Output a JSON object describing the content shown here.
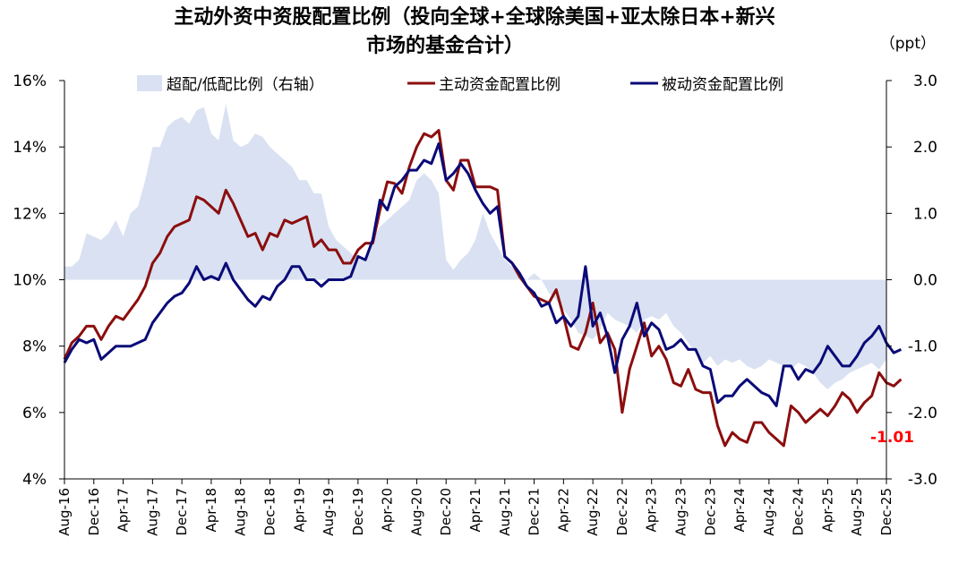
{
  "chart_data": {
    "type": "line",
    "title_line1": "主动外资中资股配置比例（投向全球+全球除美国+亚太除日本+新兴",
    "title_line2": "市场的基金合计）",
    "right_unit": "（ppt）",
    "left_axis": {
      "ylim": [
        4,
        16
      ],
      "ticks": [
        "4%",
        "6%",
        "8%",
        "10%",
        "12%",
        "14%",
        "16%"
      ],
      "tick_values": [
        4,
        6,
        8,
        10,
        12,
        14,
        16
      ]
    },
    "right_axis": {
      "ylim": [
        -3.0,
        3.0
      ],
      "ticks": [
        "-3.0",
        "-2.0",
        "-1.0",
        "0.0",
        "1.0",
        "2.0",
        "3.0"
      ],
      "tick_values": [
        -3,
        -2,
        -1,
        0,
        1,
        2,
        3
      ]
    },
    "x_tick_labels": [
      "Aug-16",
      "Dec-16",
      "Apr-17",
      "Aug-17",
      "Dec-17",
      "Apr-18",
      "Aug-18",
      "Dec-18",
      "Apr-19",
      "Aug-19",
      "Dec-19",
      "Apr-20",
      "Aug-20",
      "Dec-20",
      "Apr-21",
      "Aug-21",
      "Dec-21",
      "Apr-22",
      "Aug-22",
      "Dec-22",
      "Apr-23",
      "Aug-23",
      "Dec-23",
      "Apr-24",
      "Aug-24",
      "Dec-24",
      "Apr-25",
      "Aug-25",
      "Dec-25"
    ],
    "month_start": "Aug-16",
    "legend": {
      "area": "超配/低配比例（右轴）",
      "active": "主动资金配置比例",
      "passive": "被动资金配置比例"
    },
    "colors": {
      "area": "#d9e1f2",
      "active": "#8b0e0e",
      "passive": "#0a0a78",
      "callout": "#ff0000"
    },
    "annotation": {
      "text": "-1.01"
    },
    "series": [
      {
        "name": "超配/低配比例（右轴）",
        "axis": "right",
        "style": "area",
        "values": [
          0.2,
          0.2,
          0.3,
          0.7,
          0.65,
          0.6,
          0.7,
          0.9,
          0.65,
          1.0,
          1.1,
          1.5,
          2.0,
          2.0,
          2.3,
          2.4,
          2.45,
          2.35,
          2.55,
          2.6,
          2.2,
          2.1,
          2.65,
          2.1,
          2.0,
          2.05,
          2.2,
          2.15,
          2.0,
          1.9,
          1.8,
          1.7,
          1.5,
          1.5,
          1.3,
          1.3,
          0.8,
          0.6,
          0.5,
          0.4,
          0.3,
          0.3,
          0.6,
          0.8,
          0.9,
          1.0,
          1.1,
          1.2,
          1.5,
          1.6,
          1.5,
          1.3,
          0.3,
          0.15,
          0.3,
          0.4,
          0.6,
          1.0,
          0.7,
          0.5,
          0.3,
          0.2,
          0.1,
          0.0,
          0.1,
          0.0,
          -0.2,
          -0.3,
          -0.45,
          -0.6,
          -0.8,
          -0.85,
          -0.9,
          -0.75,
          -0.5,
          -0.6,
          -0.65,
          -0.7,
          -0.8,
          -0.6,
          -0.55,
          -0.6,
          -0.5,
          -0.7,
          -0.8,
          -0.95,
          -1.1,
          -1.25,
          -1.15,
          -1.3,
          -1.2,
          -1.25,
          -1.2,
          -1.3,
          -1.35,
          -1.3,
          -1.2,
          -1.25,
          -1.3,
          -1.35,
          -1.25,
          -1.3,
          -1.4,
          -1.55,
          -1.65,
          -1.55,
          -1.5,
          -1.4,
          -1.35,
          -1.3,
          -1.25,
          -1.35,
          -1.2
        ]
      },
      {
        "name": "主动资金配置比例",
        "axis": "left",
        "style": "line",
        "values": [
          7.6,
          8.1,
          8.3,
          8.6,
          8.6,
          8.2,
          8.6,
          8.9,
          8.8,
          9.1,
          9.4,
          9.8,
          10.5,
          10.8,
          11.3,
          11.6,
          11.7,
          11.8,
          12.5,
          12.4,
          12.2,
          12.0,
          12.7,
          12.3,
          11.8,
          11.3,
          11.4,
          10.9,
          11.4,
          11.3,
          11.8,
          11.7,
          11.8,
          11.9,
          11.0,
          11.2,
          10.9,
          10.9,
          10.5,
          10.5,
          10.9,
          11.1,
          11.1,
          12.1,
          12.95,
          12.9,
          12.6,
          13.4,
          14.0,
          14.4,
          14.3,
          14.5,
          13.0,
          12.7,
          13.6,
          13.6,
          12.8,
          12.8,
          12.8,
          12.7,
          10.7,
          10.5,
          10.1,
          9.8,
          9.5,
          9.4,
          9.3,
          9.7,
          8.9,
          8.0,
          7.9,
          8.4,
          9.3,
          8.1,
          8.4,
          7.9,
          6.0,
          7.3,
          8.0,
          8.7,
          7.7,
          8.0,
          7.6,
          6.9,
          6.8,
          7.3,
          6.7,
          6.6,
          6.6,
          5.6,
          5.0,
          5.4,
          5.2,
          5.1,
          5.7,
          5.7,
          5.4,
          5.2,
          5.0,
          6.2,
          6.0,
          5.7,
          5.9,
          6.1,
          5.9,
          6.2,
          6.6,
          6.4,
          6.0,
          6.3,
          6.5,
          7.2,
          6.9,
          6.8,
          7.0
        ]
      },
      {
        "name": "被动资金配置比例",
        "axis": "left",
        "style": "line",
        "values": [
          7.5,
          7.9,
          8.2,
          8.1,
          8.2,
          7.6,
          7.8,
          8.0,
          8.0,
          8.0,
          8.1,
          8.2,
          8.7,
          9.0,
          9.3,
          9.5,
          9.6,
          9.9,
          10.4,
          10.0,
          10.1,
          10.0,
          10.5,
          10.0,
          9.7,
          9.4,
          9.2,
          9.5,
          9.4,
          9.8,
          10.0,
          10.4,
          10.4,
          10.0,
          10.0,
          9.8,
          10.0,
          10.0,
          10.0,
          10.1,
          10.7,
          10.6,
          11.2,
          12.4,
          12.1,
          12.8,
          13.0,
          13.3,
          13.3,
          13.6,
          13.5,
          14.1,
          13.0,
          13.2,
          13.5,
          13.2,
          12.7,
          12.3,
          12.0,
          12.2,
          10.7,
          10.5,
          10.2,
          9.8,
          9.6,
          9.2,
          9.3,
          8.7,
          8.9,
          8.6,
          8.9,
          10.4,
          8.6,
          9.0,
          8.3,
          7.2,
          8.2,
          8.6,
          9.3,
          8.3,
          8.7,
          8.5,
          7.9,
          8.0,
          8.2,
          7.9,
          7.9,
          7.4,
          7.3,
          6.3,
          6.5,
          6.5,
          6.8,
          7.0,
          6.8,
          6.6,
          6.5,
          6.2,
          7.4,
          7.4,
          7.0,
          7.3,
          7.2,
          7.5,
          8.0,
          7.7,
          7.4,
          7.4,
          7.7,
          8.1,
          8.3,
          8.6,
          8.1,
          7.8,
          7.9
        ]
      }
    ]
  }
}
